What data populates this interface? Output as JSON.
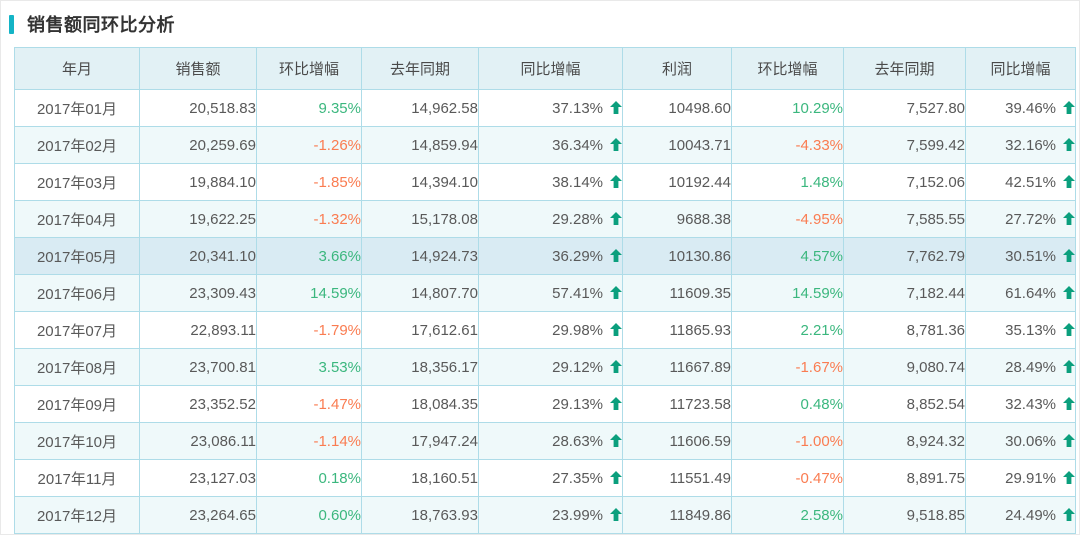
{
  "section": {
    "title": "销售额同环比分析"
  },
  "colors": {
    "accent": "#14b4c6",
    "positive": "#3bb77e",
    "negative": "#fa7c51",
    "arrow-up": "#0b9f7d",
    "header-bg": "#e2f1f5",
    "stripe-bg": "#eff9fa",
    "highlight-bg": "#d9ebf3",
    "border": "#aedce8",
    "text": "#595959"
  },
  "icons": {
    "up_arrow": "arrow-up-icon"
  },
  "table": {
    "headers": [
      "年月",
      "销售额",
      "环比增幅",
      "去年同期",
      "同比增幅",
      "利润",
      "环比增幅",
      "去年同期",
      "同比增幅"
    ],
    "columns": [
      {
        "name": "month",
        "type": "month"
      },
      {
        "name": "sales",
        "type": "number"
      },
      {
        "name": "sales-mom-growth",
        "type": "percent"
      },
      {
        "name": "sales-last-year",
        "type": "number"
      },
      {
        "name": "sales-yoy-growth",
        "type": "yoy-up"
      },
      {
        "name": "profit",
        "type": "number"
      },
      {
        "name": "profit-mom-growth",
        "type": "percent"
      },
      {
        "name": "profit-last-year",
        "type": "number"
      },
      {
        "name": "profit-yoy-growth",
        "type": "yoy-up"
      }
    ],
    "highlighted_row_index": 4,
    "rows": [
      [
        "2017年01月",
        "20,518.83",
        "9.35%",
        "14,962.58",
        "37.13%",
        "10498.60",
        "10.29%",
        "7,527.80",
        "39.46%"
      ],
      [
        "2017年02月",
        "20,259.69",
        "-1.26%",
        "14,859.94",
        "36.34%",
        "10043.71",
        "-4.33%",
        "7,599.42",
        "32.16%"
      ],
      [
        "2017年03月",
        "19,884.10",
        "-1.85%",
        "14,394.10",
        "38.14%",
        "10192.44",
        "1.48%",
        "7,152.06",
        "42.51%"
      ],
      [
        "2017年04月",
        "19,622.25",
        "-1.32%",
        "15,178.08",
        "29.28%",
        "9688.38",
        "-4.95%",
        "7,585.55",
        "27.72%"
      ],
      [
        "2017年05月",
        "20,341.10",
        "3.66%",
        "14,924.73",
        "36.29%",
        "10130.86",
        "4.57%",
        "7,762.79",
        "30.51%"
      ],
      [
        "2017年06月",
        "23,309.43",
        "14.59%",
        "14,807.70",
        "57.41%",
        "11609.35",
        "14.59%",
        "7,182.44",
        "61.64%"
      ],
      [
        "2017年07月",
        "22,893.11",
        "-1.79%",
        "17,612.61",
        "29.98%",
        "11865.93",
        "2.21%",
        "8,781.36",
        "35.13%"
      ],
      [
        "2017年08月",
        "23,700.81",
        "3.53%",
        "18,356.17",
        "29.12%",
        "11667.89",
        "-1.67%",
        "9,080.74",
        "28.49%"
      ],
      [
        "2017年09月",
        "23,352.52",
        "-1.47%",
        "18,084.35",
        "29.13%",
        "11723.58",
        "0.48%",
        "8,852.54",
        "32.43%"
      ],
      [
        "2017年10月",
        "23,086.11",
        "-1.14%",
        "17,947.24",
        "28.63%",
        "11606.59",
        "-1.00%",
        "8,924.32",
        "30.06%"
      ],
      [
        "2017年11月",
        "23,127.03",
        "0.18%",
        "18,160.51",
        "27.35%",
        "11551.49",
        "-0.47%",
        "8,891.75",
        "29.91%"
      ],
      [
        "2017年12月",
        "23,264.65",
        "0.60%",
        "18,763.93",
        "23.99%",
        "11849.86",
        "2.58%",
        "9,518.85",
        "24.49%"
      ]
    ]
  }
}
